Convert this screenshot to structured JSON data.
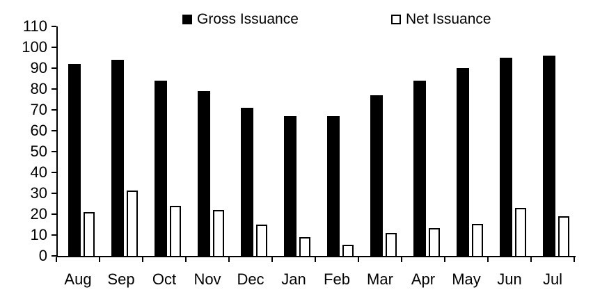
{
  "chart_data": {
    "type": "bar",
    "title": "",
    "categories": [
      "Aug",
      "Sep",
      "Oct",
      "Nov",
      "Dec",
      "Jan",
      "Feb",
      "Mar",
      "Apr",
      "May",
      "Jun",
      "Jul"
    ],
    "series": [
      {
        "name": "Gross Issuance",
        "style": "filled",
        "color": "#000000",
        "values": [
          92,
          94,
          84,
          79,
          71,
          67,
          67,
          77,
          84,
          90,
          95,
          96
        ]
      },
      {
        "name": "Net Issuance",
        "style": "outline",
        "color": "#ffffff",
        "border_color": "#000000",
        "values": [
          21,
          31.5,
          24,
          22,
          15,
          9,
          5.5,
          11,
          13.5,
          15.5,
          23,
          19
        ]
      }
    ],
    "ylim": [
      0,
      110
    ],
    "y_tick_step": 10,
    "y_ticks": [
      110,
      100,
      90,
      80,
      70,
      60,
      50,
      40,
      30,
      20,
      10,
      0
    ],
    "grid": false,
    "legend_position": "top-center",
    "axis_color": "#000000",
    "background_color": "#ffffff"
  }
}
